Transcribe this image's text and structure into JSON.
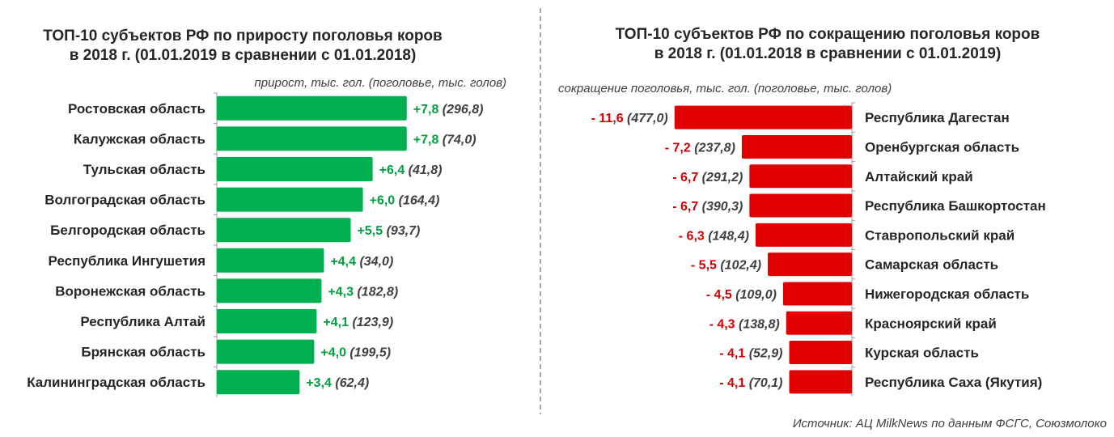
{
  "chart_data": [
    {
      "type": "bar",
      "orientation": "horizontal",
      "title_line1": "ТОП-10 субъектов РФ по приросту поголовья коров",
      "title_line2": "в 2018 г. (01.01.2019 в сравнении с 01.01.2018)",
      "subtitle": "прирост, тыс. гол. (поголовье, тыс. голов)",
      "categories": [
        "Ростовская область",
        "Калужская область",
        "Тульская область",
        "Волгоградская область",
        "Белгородская область",
        "Республика Ингушетия",
        "Воронежская область",
        "Республика Алтай",
        "Брянская область",
        "Калининградская область"
      ],
      "values": [
        7.8,
        7.8,
        6.4,
        6.0,
        5.5,
        4.4,
        4.3,
        4.1,
        4.0,
        3.4
      ],
      "value_labels": [
        "+7,8",
        "+7,8",
        "+6,4",
        "+6,0",
        "+5,5",
        "+4,4",
        "+4,3",
        "+4,1",
        "+4,0",
        "+3,4"
      ],
      "stock_labels": [
        "(296,8)",
        "(74,0)",
        "(41,8)",
        "(164,4)",
        "(93,7)",
        "(34,0)",
        "(182,8)",
        "(123,9)",
        "(199,5)",
        "(62,4)"
      ],
      "color": "#00b050",
      "label_color": "#00a040"
    },
    {
      "type": "bar",
      "orientation": "horizontal",
      "title_line1": "ТОП-10 субъектов РФ по сокращению поголовья коров",
      "title_line2": "в 2018 г. (01.01.2018 в сравнении с 01.01.2019)",
      "subtitle": "сокращение поголовья, тыс. гол. (поголовье, тыс. голов)",
      "categories": [
        "Республика Дагестан",
        "Оренбургская область",
        "Алтайский край",
        "Республика Башкортостан",
        "Ставропольский край",
        "Самарская область",
        "Нижегородская область",
        "Красноярский край",
        "Курская область",
        "Республика Саха (Якутия)"
      ],
      "values": [
        -11.6,
        -7.2,
        -6.7,
        -6.7,
        -6.3,
        -5.5,
        -4.5,
        -4.3,
        -4.1,
        -4.1
      ],
      "value_labels": [
        "- 11,6",
        "- 7,2",
        "- 6,7",
        "- 6,7",
        "- 6,3",
        "- 5,5",
        "- 4,5",
        "- 4,3",
        "- 4,1",
        "- 4,1"
      ],
      "stock_labels": [
        "(477,0)",
        "(237,8)",
        "(291,2)",
        "(390,3)",
        "(148,4)",
        "(102,4)",
        "(109,0)",
        "(138,8)",
        "(52,9)",
        "(70,1)"
      ],
      "color": "#e00000",
      "label_color": "#d00000"
    }
  ],
  "source": "Источник: АЦ MilkNews по данным ФСГС, Союзмолоко"
}
